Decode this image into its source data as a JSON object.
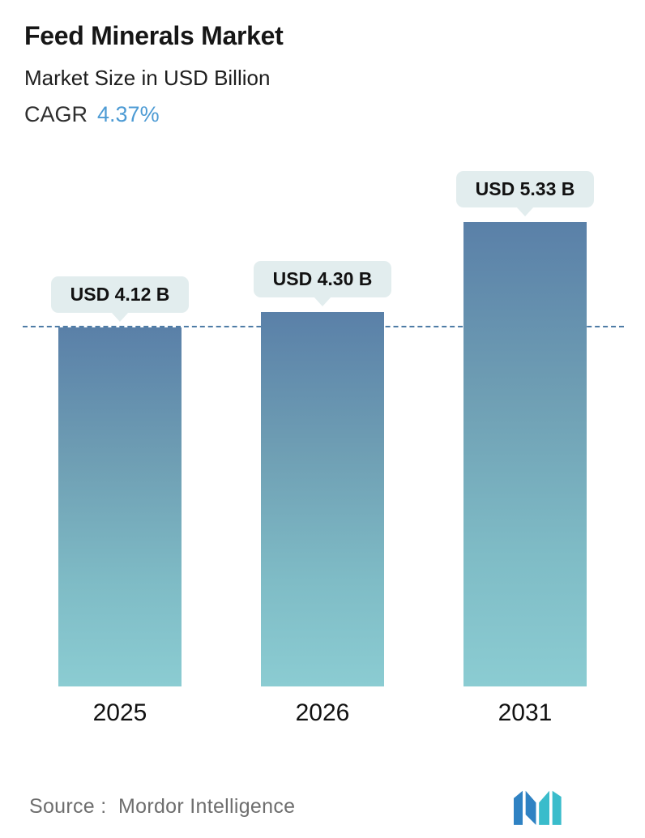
{
  "header": {
    "title": "Feed Minerals Market",
    "subtitle": "Market Size in USD Billion",
    "cagr_label": "CAGR",
    "cagr_value": "4.37%"
  },
  "chart_data": {
    "type": "bar",
    "title": "Feed Minerals Market",
    "ylabel": "Market Size in USD Billion",
    "categories": [
      "2025",
      "2026",
      "2031"
    ],
    "values": [
      4.12,
      4.3,
      5.33
    ],
    "value_labels": [
      "USD 4.12 B",
      "USD 4.30 B",
      "USD 5.33 B"
    ],
    "reference_line": 4.12,
    "ylim": [
      0,
      5.6
    ],
    "grid": false,
    "legend": "none",
    "cagr": "4.37%"
  },
  "colors": {
    "accent_blue": "#4d9bd4",
    "bar_gradient_top": "#5a80a8",
    "bar_gradient_bottom": "#8bccd2",
    "label_pill_bg": "#e2edee",
    "dashed_line": "#4e7ca6",
    "logo_blue": "#2f82c3",
    "logo_teal": "#3abccb"
  },
  "footer": {
    "source_label": "Source :",
    "source_value": "Mordor Intelligence",
    "logo_name": "mordor-intelligence-logo"
  }
}
